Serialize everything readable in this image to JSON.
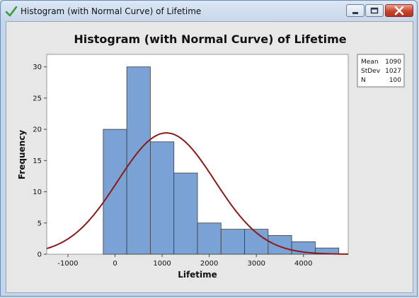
{
  "window": {
    "title": "Histogram (with Normal Curve) of Lifetime",
    "controls": {
      "minimize": "minimize",
      "maximize": "maximize",
      "close": "close"
    }
  },
  "legend_box": {
    "rows": [
      {
        "label": "Mean",
        "value": "1090"
      },
      {
        "label": "StDev",
        "value": "1027"
      },
      {
        "label": "N",
        "value": "100"
      }
    ]
  },
  "chart_data": {
    "type": "bar",
    "title": "Histogram (with Normal Curve) of Lifetime",
    "xlabel": "Lifetime",
    "ylabel": "Frequency",
    "xlim": [
      -1450,
      4950
    ],
    "ylim": [
      0,
      32
    ],
    "x_ticks": [
      -1000,
      0,
      1000,
      2000,
      3000,
      4000
    ],
    "y_ticks": [
      0,
      5,
      10,
      15,
      20,
      25,
      30
    ],
    "bin_width": 500,
    "bins": [
      {
        "from": -250,
        "to": 250,
        "count": 20
      },
      {
        "from": 250,
        "to": 750,
        "count": 30
      },
      {
        "from": 750,
        "to": 1250,
        "count": 18
      },
      {
        "from": 1250,
        "to": 1750,
        "count": 13
      },
      {
        "from": 1750,
        "to": 2250,
        "count": 5
      },
      {
        "from": 2250,
        "to": 2750,
        "count": 4
      },
      {
        "from": 2750,
        "to": 3250,
        "count": 4
      },
      {
        "from": 3250,
        "to": 3750,
        "count": 3
      },
      {
        "from": 3750,
        "to": 4250,
        "count": 2
      },
      {
        "from": 4250,
        "to": 4750,
        "count": 1
      }
    ],
    "normal_curve": {
      "mean": 1090,
      "stdev": 1027,
      "n": 100
    },
    "colors": {
      "bar_fill": "#7aa2d4",
      "bar_edge": "#3c3c3c",
      "curve": "#8b1a1a",
      "plot_bg": "#ffffff",
      "frame_bg": "#e7e7e7"
    },
    "grid": false,
    "legend_placement": "right"
  }
}
